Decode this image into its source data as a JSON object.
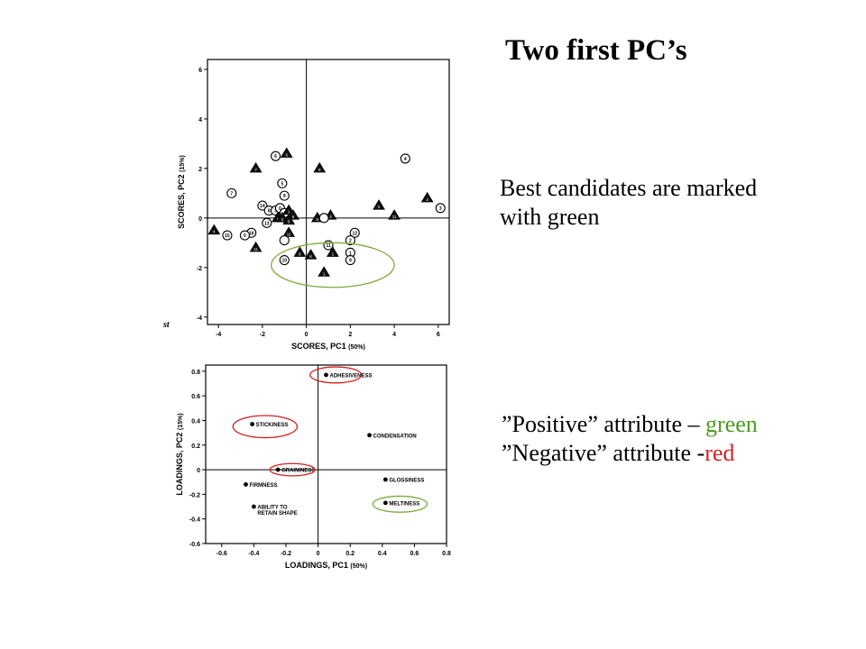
{
  "title": "Two first PC’s",
  "notes": {
    "candidates_line1": "Best candidates are marked",
    "candidates_line2": "with green",
    "positive_open": "”Positive” attribute – ",
    "positive_word": "green",
    "negative_open": "”Negative” attribute -",
    "negative_word": "red"
  },
  "colors": {
    "green": "#4a9a1c",
    "red": "#d42020",
    "ellipse_green": "#7faa3a",
    "ellipse_red": "#d42020"
  },
  "chart_data": [
    {
      "type": "scatter",
      "xlabel": "SCORES, PC1",
      "xlabel_pct": "(50%)",
      "ylabel": "SCORES, PC2",
      "ylabel_pct": "(15%)",
      "xlim": [
        -4.5,
        6.5
      ],
      "ylim": [
        -4.3,
        6.4
      ],
      "xticks": [
        -4,
        -2,
        0,
        2,
        4,
        6
      ],
      "yticks": [
        -4,
        -2,
        0,
        2,
        4,
        6
      ],
      "xtick_labels": [
        "-4",
        "-2",
        "0",
        "2",
        "4",
        "6"
      ],
      "ytick_labels": [
        "-4",
        "-2",
        "0",
        "2",
        "4",
        "6"
      ],
      "stray_mark": "st",
      "points": [
        {
          "x": -2.3,
          "y": 2.0,
          "shape": "triangle",
          "label": "7"
        },
        {
          "x": -1.4,
          "y": 2.5,
          "shape": "circle",
          "label": "6"
        },
        {
          "x": -0.9,
          "y": 2.6,
          "shape": "triangle",
          "label": "5"
        },
        {
          "x": 0.6,
          "y": 2.0,
          "shape": "triangle",
          "label": "8"
        },
        {
          "x": -3.4,
          "y": 1.0,
          "shape": "circle",
          "label": "7"
        },
        {
          "x": -1.1,
          "y": 1.4,
          "shape": "circle",
          "label": "5"
        },
        {
          "x": -1.0,
          "y": 0.9,
          "shape": "circle",
          "label": "9"
        },
        {
          "x": -2.0,
          "y": 0.5,
          "shape": "circle",
          "label": "14"
        },
        {
          "x": -1.7,
          "y": 0.3,
          "shape": "circle",
          "label": "8"
        },
        {
          "x": -1.4,
          "y": 0.3,
          "shape": "circle",
          "label": "3"
        },
        {
          "x": -1.2,
          "y": 0.4,
          "shape": "circle",
          "label": "0"
        },
        {
          "x": -1.0,
          "y": 0.2,
          "shape": "circle",
          "label": "4"
        },
        {
          "x": -0.8,
          "y": 0.3,
          "shape": "triangle",
          "label": "1"
        },
        {
          "x": -0.6,
          "y": 0.1,
          "shape": "triangle",
          "label": "6"
        },
        {
          "x": -1.3,
          "y": 0.0,
          "shape": "triangle",
          "label": "9"
        },
        {
          "x": -1.1,
          "y": 0.0,
          "shape": "triangle",
          "label": "2"
        },
        {
          "x": -0.8,
          "y": -0.1,
          "shape": "triangle",
          "label": "5"
        },
        {
          "x": -1.8,
          "y": -0.2,
          "shape": "circle",
          "label": "13"
        },
        {
          "x": -2.5,
          "y": -0.6,
          "shape": "circle",
          "label": "16"
        },
        {
          "x": -2.8,
          "y": -0.7,
          "shape": "circle",
          "label": "0"
        },
        {
          "x": -3.6,
          "y": -0.7,
          "shape": "circle",
          "label": "15"
        },
        {
          "x": -4.2,
          "y": -0.5,
          "shape": "triangle",
          "label": "4"
        },
        {
          "x": -0.8,
          "y": -0.6,
          "shape": "triangle",
          "label": "11"
        },
        {
          "x": -1.0,
          "y": -0.9,
          "shape": "circle",
          "label": ""
        },
        {
          "x": -2.3,
          "y": -1.2,
          "shape": "triangle",
          "label": "11"
        },
        {
          "x": -0.3,
          "y": -1.4,
          "shape": "triangle",
          "label": "8"
        },
        {
          "x": -1.0,
          "y": -1.7,
          "shape": "circle",
          "label": "10"
        },
        {
          "x": 0.5,
          "y": 0.0,
          "shape": "triangle",
          "label": "5"
        },
        {
          "x": 1.1,
          "y": 0.1,
          "shape": "triangle",
          "label": "3"
        },
        {
          "x": 0.8,
          "y": 0.0,
          "shape": "circle",
          "label": ""
        },
        {
          "x": 3.3,
          "y": 0.5,
          "shape": "triangle",
          "label": "2"
        },
        {
          "x": 4.0,
          "y": 0.1,
          "shape": "triangle",
          "label": "11"
        },
        {
          "x": 4.5,
          "y": 2.4,
          "shape": "circle",
          "label": "4"
        },
        {
          "x": 5.5,
          "y": 0.8,
          "shape": "triangle",
          "label": "2"
        },
        {
          "x": 6.1,
          "y": 0.4,
          "shape": "circle",
          "label": "3"
        },
        {
          "x": 1.0,
          "y": -1.1,
          "shape": "circle",
          "label": "11"
        },
        {
          "x": 2.2,
          "y": -0.6,
          "shape": "circle",
          "label": "12"
        },
        {
          "x": 2.0,
          "y": -0.9,
          "shape": "circle",
          "label": "2"
        },
        {
          "x": 2.0,
          "y": -1.4,
          "shape": "circle",
          "label": "1"
        },
        {
          "x": 2.0,
          "y": -1.7,
          "shape": "circle",
          "label": "9"
        },
        {
          "x": 1.2,
          "y": -1.4,
          "shape": "triangle",
          "label": "1"
        },
        {
          "x": 0.8,
          "y": -2.2,
          "shape": "triangle",
          "label": "1"
        },
        {
          "x": 0.2,
          "y": -1.5,
          "shape": "triangle",
          "label": "8"
        }
      ],
      "highlight_ellipses": [
        {
          "cx": 1.2,
          "cy": -1.9,
          "rx": 2.8,
          "ry": 0.9,
          "color": "green"
        }
      ]
    },
    {
      "type": "scatter",
      "xlabel": "LOADINGS, PC1",
      "xlabel_pct": "(50%)",
      "ylabel": "LOADINGS, PC2",
      "ylabel_pct": "(15%)",
      "xlim": [
        -0.7,
        0.8
      ],
      "ylim": [
        -0.6,
        0.85
      ],
      "xticks": [
        -0.6,
        -0.4,
        -0.2,
        0,
        0.2,
        0.4,
        0.6,
        0.8
      ],
      "yticks": [
        -0.6,
        -0.4,
        -0.2,
        0,
        0.2,
        0.4,
        0.6,
        0.8
      ],
      "xtick_labels": [
        "-0.6",
        "-0.4",
        "-0.2",
        "0",
        "0.2",
        "0.4",
        "0.6",
        "0.8"
      ],
      "ytick_labels": [
        "-0.6",
        "-0.4",
        "-0.2",
        "0",
        "0.2",
        "0.4",
        "0.6",
        "0.8"
      ],
      "points": [
        {
          "x": 0.05,
          "y": 0.77,
          "label": "ADHESIVENESS"
        },
        {
          "x": -0.41,
          "y": 0.37,
          "label": "STICKINESS"
        },
        {
          "x": 0.32,
          "y": 0.28,
          "label": "CONDENSATION"
        },
        {
          "x": -0.25,
          "y": 0.0,
          "label": "GRAININESS"
        },
        {
          "x": 0.42,
          "y": -0.08,
          "label": "GLOSSINESS"
        },
        {
          "x": -0.45,
          "y": -0.12,
          "label": "FIRMNESS"
        },
        {
          "x": 0.42,
          "y": -0.27,
          "label": "MELTINESS"
        },
        {
          "x": -0.4,
          "y": -0.3,
          "label": "ABILITY TO",
          "label2": "RETAIN SHAPE"
        }
      ],
      "highlight_ellipses": [
        {
          "cx": 0.11,
          "cy": 0.77,
          "rx": 0.16,
          "ry": 0.065,
          "color": "red"
        },
        {
          "cx": -0.33,
          "cy": 0.35,
          "rx": 0.2,
          "ry": 0.09,
          "color": "red"
        },
        {
          "cx": -0.16,
          "cy": 0.0,
          "rx": 0.14,
          "ry": 0.05,
          "color": "red"
        },
        {
          "cx": 0.51,
          "cy": -0.28,
          "rx": 0.17,
          "ry": 0.065,
          "color": "green"
        }
      ]
    }
  ]
}
